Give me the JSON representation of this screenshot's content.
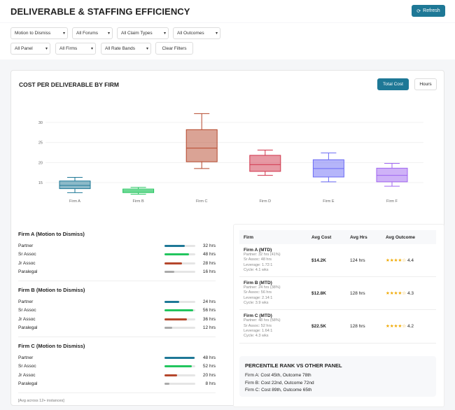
{
  "header": {
    "title": "DELIVERABLE & STAFFING EFFICIENCY",
    "refresh_label": "Refresh"
  },
  "filters": {
    "row1": [
      "Motion to Dismiss",
      "All Forums",
      "All Claim Types",
      "All Outcomes"
    ],
    "row2": [
      "All Panel",
      "All Firms",
      "All Rate Bands"
    ],
    "clear_label": "Clear Filters"
  },
  "chart_card": {
    "title": "COST PER DELIVERABLE BY FIRM",
    "toggle": [
      {
        "label": "Total Cost",
        "active": true
      },
      {
        "label": "Hours",
        "active": false
      }
    ]
  },
  "chart_data": {
    "type": "boxplot",
    "categories": [
      "Firm A",
      "Firm B",
      "Firm C",
      "Firm D",
      "Firm E",
      "Firm F"
    ],
    "yticks": [
      15,
      20,
      25,
      30
    ],
    "ylim": [
      12,
      33
    ],
    "grid": true,
    "series": [
      {
        "min": 12.5,
        "q1": 13.5,
        "median": 14.3,
        "q3": 15.4,
        "max": 16.3,
        "color": "#1e7896"
      },
      {
        "min": 12.1,
        "q1": 12.5,
        "median": 12.9,
        "q3": 13.4,
        "max": 13.8,
        "color": "#22c55e"
      },
      {
        "min": 18.5,
        "q1": 20.2,
        "median": 23.6,
        "q3": 28.2,
        "max": 32.2,
        "color": "#b5472c"
      },
      {
        "min": 16.8,
        "q1": 17.8,
        "median": 19.5,
        "q3": 21.8,
        "max": 23.1,
        "color": "#d0334a"
      },
      {
        "min": 15.2,
        "q1": 16.4,
        "median": 18.5,
        "q3": 20.7,
        "max": 22.4,
        "color": "#6b6bf5"
      },
      {
        "min": 14.1,
        "q1": 15.2,
        "median": 16.8,
        "q3": 18.6,
        "max": 19.8,
        "color": "#a066f0"
      }
    ]
  },
  "staffing": [
    {
      "title": "Firm A (Motion to Dismiss)",
      "rows": [
        {
          "role": "Partner",
          "hrs": "32 hrs",
          "pct": 0.65
        },
        {
          "role": "Sr Assoc",
          "hrs": "48 hrs",
          "pct": 0.8
        },
        {
          "role": "Jr Assoc",
          "hrs": "28 hrs",
          "pct": 0.57
        },
        {
          "role": "Paralegal",
          "hrs": "16 hrs",
          "pct": 0.32
        }
      ]
    },
    {
      "title": "Firm B (Motion to Dismiss)",
      "rows": [
        {
          "role": "Partner",
          "hrs": "24 hrs",
          "pct": 0.48
        },
        {
          "role": "Sr Assoc",
          "hrs": "56 hrs",
          "pct": 0.93
        },
        {
          "role": "Jr Assoc",
          "hrs": "36 hrs",
          "pct": 0.72
        },
        {
          "role": "Paralegal",
          "hrs": "12 hrs",
          "pct": 0.24
        }
      ]
    },
    {
      "title": "Firm C (Motion to Dismiss)",
      "rows": [
        {
          "role": "Partner",
          "hrs": "48 hrs",
          "pct": 0.97
        },
        {
          "role": "Sr Assoc",
          "hrs": "52 hrs",
          "pct": 0.88
        },
        {
          "role": "Jr Assoc",
          "hrs": "20 hrs",
          "pct": 0.4
        },
        {
          "role": "Paralegal",
          "hrs": "8 hrs",
          "pct": 0.16
        }
      ]
    }
  ],
  "staffing_note": "[Avg across 12+ instances]",
  "bar_colors": {
    "Partner": "#1e7896",
    "Sr Assoc": "#22c55e",
    "Jr Assoc": "#b5472c",
    "Paralegal": "#aaaaaa"
  },
  "table": {
    "headers": [
      "Firm",
      "Avg Cost",
      "Avg Hrs",
      "Avg Outcome"
    ],
    "rows": [
      {
        "firm": "Firm A (MTD)",
        "details": [
          "Partner: 32 hrs (41%)",
          "Sr Assoc: 48 hrs",
          "Leverage: 1.72:1",
          "Cycle: 4.1 wks"
        ],
        "cost": "$14.2K",
        "hrs": "124 hrs",
        "stars": "★★★★☆",
        "rating": "4.4"
      },
      {
        "firm": "Firm B (MTD)",
        "details": [
          "Partner: 24 hrs (38%)",
          "Sr Assoc: 56 hrs",
          "Leverage: 2.14:1",
          "Cycle: 3.9 wks"
        ],
        "cost": "$12.8K",
        "hrs": "128 hrs",
        "stars": "★★★★☆",
        "rating": "4.3"
      },
      {
        "firm": "Firm C (MTD)",
        "details": [
          "Partner: 48 hrs (58%)",
          "Sr Assoc: 52 hrs",
          "Leverage: 1.64:1",
          "Cycle: 4.3 wks"
        ],
        "cost": "$22.5K",
        "hrs": "128 hrs",
        "stars": "★★★★☆",
        "rating": "4.2"
      }
    ]
  },
  "percentile": {
    "title": "PERCENTILE RANK VS OTHER PANEL",
    "lines": [
      "Firm A: Cost 45th, Outcome 78th",
      "Firm B: Cost 22nd, Outcome 72nd",
      "Firm C: Cost 89th, Outcome 65th"
    ]
  }
}
